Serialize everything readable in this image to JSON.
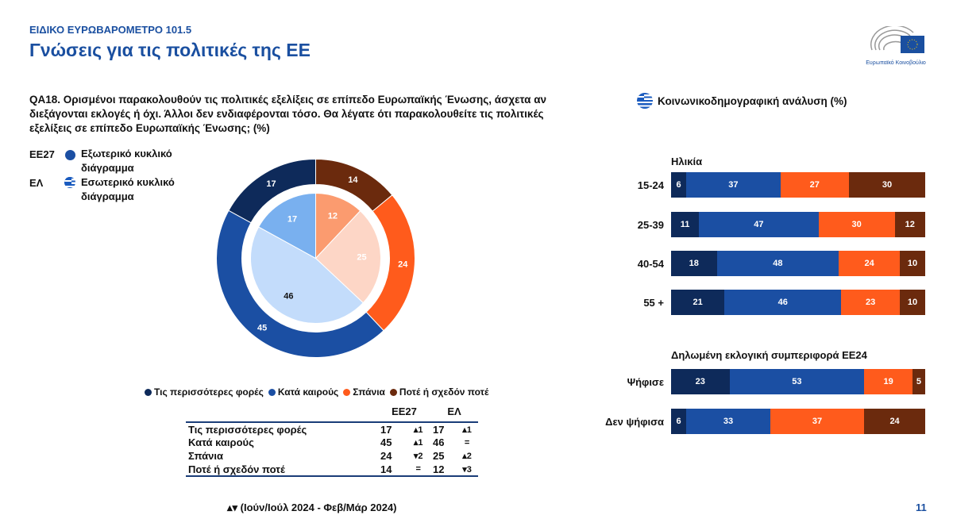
{
  "header": {
    "kicker": "ΕΙΔΙΚΟ ΕΥΡΩΒΑΡΟΜΕΤΡΟ 101.5",
    "title": "Γνώσεις για τις πολιτικές της ΕΕ",
    "logo_caption": "Ευρωπαϊκό Κοινοβούλιο"
  },
  "question": "QA18. Ορισμένοι παρακολουθούν τις πολιτικές εξελίξεις σε επίπεδο Ευρωπαϊκής Ένωσης, άσχετα αν διεξάγονται εκλογές ή όχι. Άλλοι δεν ενδιαφέρονται τόσο. Θα λέγατε ότι παρακολουθείτε τις πολιτικές εξελίξεις σε επίπεδο Ευρωπαϊκής Ένωσης; (%)",
  "ring_legend": [
    {
      "code": "ΕΕ27",
      "text": "Εξωτερικό κυκλικό διάγραμμα"
    },
    {
      "code": "ΕΛ",
      "text": "Εσωτερικό κυκλικό διάγραμμα"
    }
  ],
  "colors": {
    "most": "#0e2a5a",
    "sometimes": "#1b4fa3",
    "rarely": "#ff5b1c",
    "never": "#6b2a0d",
    "most_in": "#79b0ef",
    "sometimes_in": "#c3dcfb",
    "rarely_in": "#fdd6c6",
    "never_in": "#fb9b6f"
  },
  "chart_data": [
    {
      "type": "pie",
      "title": "QA18 donut",
      "categories": [
        "Τις περισσότερες φορές",
        "Κατά καιρούς",
        "Σπάνια",
        "Ποτέ ή σχεδόν ποτέ"
      ],
      "series": [
        {
          "name": "ΕΕ27",
          "ring": "outer",
          "values": [
            17,
            45,
            24,
            14
          ]
        },
        {
          "name": "ΕΛ",
          "ring": "inner",
          "values": [
            17,
            46,
            25,
            12
          ]
        }
      ]
    },
    {
      "type": "bar",
      "stacked": true,
      "orientation": "horizontal",
      "title": "Κοινωνικοδημογραφική ανάλυση (%)",
      "groups": [
        {
          "title": "Ηλικία",
          "rows": [
            {
              "label": "15-24",
              "values": [
                6,
                37,
                27,
                30
              ]
            },
            {
              "label": "25-39",
              "values": [
                11,
                47,
                30,
                12
              ]
            },
            {
              "label": "40-54",
              "values": [
                18,
                48,
                24,
                10
              ]
            },
            {
              "label": "55 +",
              "values": [
                21,
                46,
                23,
                10
              ]
            }
          ]
        },
        {
          "title": "Δηλωμένη εκλογική συμπεριφορά ΕΕ24",
          "rows": [
            {
              "label": "Ψήφισε",
              "values": [
                23,
                53,
                19,
                5
              ]
            },
            {
              "label": "Δεν ψήφισα",
              "values": [
                6,
                33,
                37,
                24
              ]
            }
          ]
        }
      ]
    }
  ],
  "table": {
    "headers": [
      "ΕΕ27",
      "ΕΛ"
    ],
    "rows": [
      {
        "label": "Τις περισσότερες φορές",
        "eu": "17",
        "eu_d": "▴1",
        "el": "17",
        "el_d": "▴1"
      },
      {
        "label": "Κατά καιρούς",
        "eu": "45",
        "eu_d": "▴1",
        "el": "46",
        "el_d": "="
      },
      {
        "label": "Σπάνια",
        "eu": "24",
        "eu_d": "▾2",
        "el": "25",
        "el_d": "▴2"
      },
      {
        "label": "Ποτέ ή σχεδόν ποτέ",
        "eu": "14",
        "eu_d": "=",
        "el": "12",
        "el_d": "▾3"
      }
    ]
  },
  "footnote": "▴▾ (Ιούν/Ιούλ 2024 - Φεβ/Μάρ 2024)",
  "page_number": "11"
}
